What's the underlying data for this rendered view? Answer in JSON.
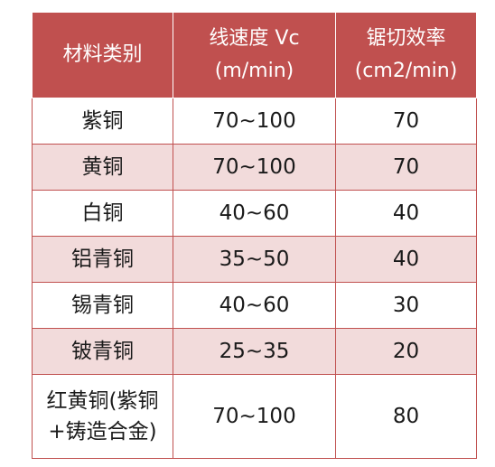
{
  "header": {
    "col1": "材料类别",
    "col2_line1": "线速度 Vc",
    "col2_line2": "(m/min)",
    "col3_line1": "锯切效率",
    "col3_line2": "(cm2/min)"
  },
  "rows": [
    {
      "material": "紫铜",
      "speed": "70~100",
      "efficiency": "70"
    },
    {
      "material": "黄铜",
      "speed": "70~100",
      "efficiency": "70"
    },
    {
      "material": "白铜",
      "speed": "40~60",
      "efficiency": "40"
    },
    {
      "material": "铝青铜",
      "speed": "35~50",
      "efficiency": "40"
    },
    {
      "material": "锡青铜",
      "speed": "40~60",
      "efficiency": "30"
    },
    {
      "material": "铍青铜",
      "speed": "25~35",
      "efficiency": "20"
    },
    {
      "material_line1": "红黄铜(紫铜",
      "material_line2": "+铸造合金)",
      "speed": "70~100",
      "efficiency": "80"
    }
  ],
  "colors": {
    "header_bg": "#c0504f",
    "alt_row_bg": "#f2dbdb",
    "border": "#c0504f"
  }
}
